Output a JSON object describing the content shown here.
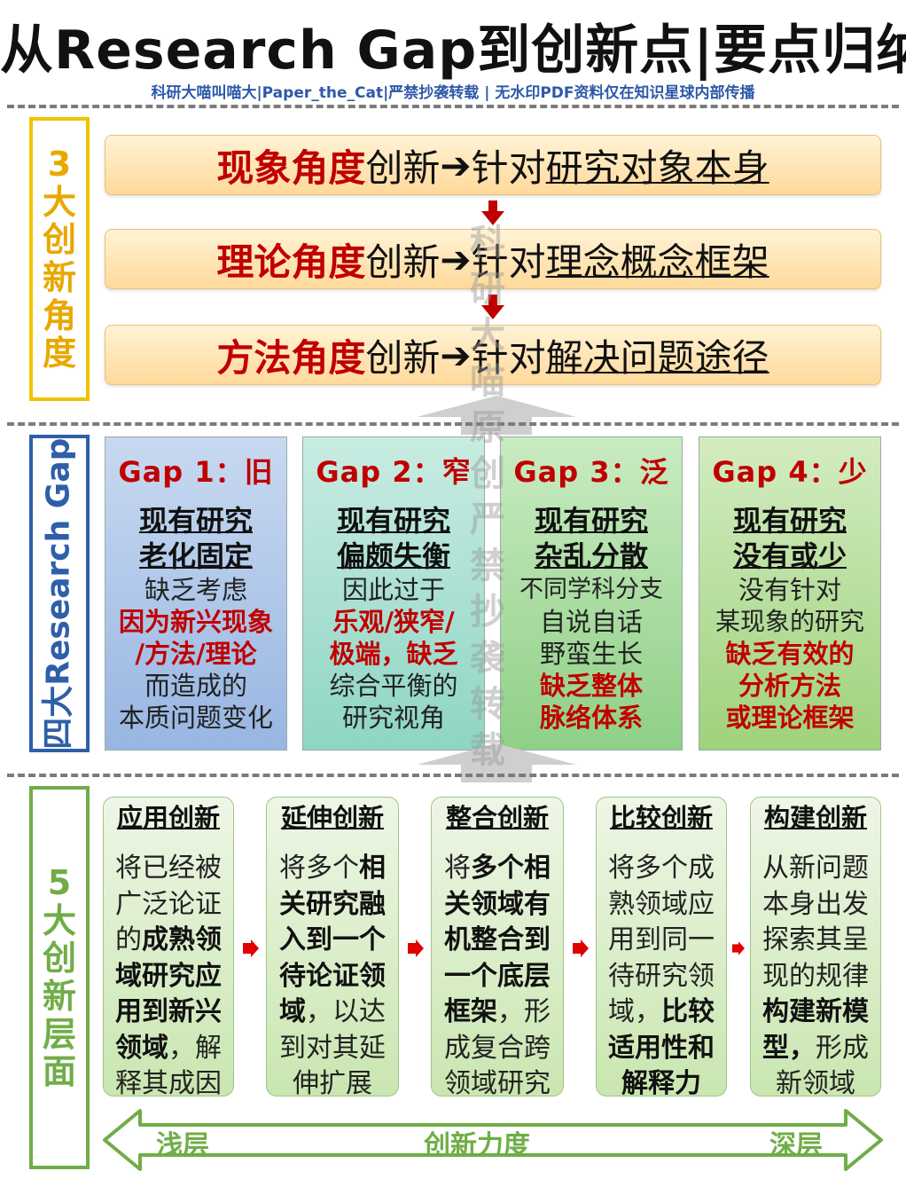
{
  "title": "从Research Gap到创新点|要点归纳",
  "subtitle": "科研大喵叫喵大|Paper_the_Cat|严禁抄袭转载 | 无水印PDF资料仅在知识星球内部传播",
  "section1": {
    "label": [
      "3",
      "大",
      "创",
      "新",
      "角",
      "度"
    ],
    "items": [
      {
        "red": "现象角度",
        "mid": "创新",
        "tail": "针对",
        "ul": "研究对象本身"
      },
      {
        "red": "理论角度",
        "mid": "创新",
        "tail": "针对",
        "ul": "理念概念框架"
      },
      {
        "red": "方法角度",
        "mid": "创新",
        "tail": "针对",
        "ul": "解决问题途径"
      }
    ]
  },
  "section2": {
    "label": "四大Research Gap",
    "gaps": [
      {
        "title": "Gap 1：旧",
        "head": [
          "现有研究",
          "老化固定"
        ],
        "lines": [
          "缺乏考虑",
          "因为新兴现象",
          "/方法/理论",
          "而造成的",
          "本质问题变化"
        ]
      },
      {
        "title": "Gap 2：窄",
        "head": [
          "现有研究",
          "偏颇失衡"
        ],
        "lines": [
          "因此过于",
          "乐观/狭窄/",
          "极端，缺乏",
          "综合平衡的",
          "研究视角"
        ]
      },
      {
        "title": "Gap 3：泛",
        "head": [
          "现有研究",
          "杂乱分散"
        ],
        "lines": [
          "不同学科分支",
          "自说自话",
          "野蛮生长",
          "缺乏整体",
          "脉络体系"
        ]
      },
      {
        "title": "Gap 4：少",
        "head": [
          "现有研究",
          "没有或少"
        ],
        "lines": [
          "没有针对",
          "某现象的研究",
          "缺乏有效的",
          "分析方法",
          "或理论框架"
        ]
      }
    ]
  },
  "section3": {
    "label": [
      "5",
      "大",
      "创",
      "新",
      "层",
      "面"
    ],
    "levels": [
      {
        "head": "应用创新",
        "lines": [
          "将已经被",
          "广泛论证",
          "的成熟领",
          "域研究应",
          "用到新兴",
          "领域，解",
          "释其成因"
        ]
      },
      {
        "head": "延伸创新",
        "lines": [
          "将多个相",
          "关研究融",
          "入到一个",
          "待论证领",
          "域，以达",
          "到对其延",
          "伸扩展"
        ]
      },
      {
        "head": "整合创新",
        "lines": [
          "将多个相",
          "关领域有",
          "机整合到",
          "一个底层",
          "框架，形",
          "成复合跨",
          "领域研究"
        ]
      },
      {
        "head": "比较创新",
        "lines": [
          "将多个成",
          "熟领域应",
          "用到同一",
          "待研究领",
          "域，比较",
          "适用性和",
          "解释力"
        ]
      },
      {
        "head": "构建创新",
        "lines": [
          "从新问题",
          "本身出发",
          "探索其呈",
          "现的规律",
          "构建新模",
          "型，形成",
          "新领域"
        ]
      }
    ],
    "scale": {
      "left": "浅层",
      "center": "创新力度",
      "right": "深层"
    }
  },
  "watermark": [
    "科",
    "研",
    "大",
    "喵",
    "原",
    "创",
    "严",
    "禁",
    "抄",
    "袭",
    "转",
    "载"
  ],
  "colors": {
    "red": "#c00000",
    "section1_border": "#f2c200",
    "section1_text": "#e8a800",
    "section2_border": "#2e5fa8",
    "section3_border": "#70ad47",
    "gap_fills": [
      "#a9c4e8",
      "#a8dfd2",
      "#a9dba0",
      "#b4dc98"
    ]
  }
}
